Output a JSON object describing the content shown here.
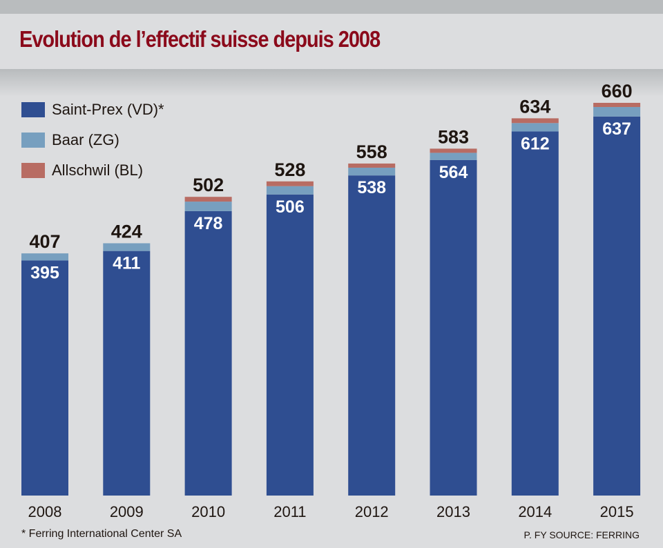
{
  "chart_data": {
    "type": "bar",
    "stacked": true,
    "title": "Evolution de l’effectif suisse depuis 2008",
    "xlabel": "",
    "ylabel": "",
    "ylim": [
      0,
      660
    ],
    "grid": false,
    "legend_position": "top-left",
    "categories": [
      "2008",
      "2009",
      "2010",
      "2011",
      "2012",
      "2013",
      "2014",
      "2015"
    ],
    "series": [
      {
        "name": "Saint-Prex (VD)*",
        "color": "#2f4e91",
        "values": [
          395,
          411,
          478,
          506,
          538,
          564,
          612,
          637
        ]
      },
      {
        "name": "Baar (ZG)",
        "color": "#779fbf",
        "values": [
          12,
          13,
          16,
          14,
          13,
          12,
          14,
          16
        ]
      },
      {
        "name": "Allschwil (BL)",
        "color": "#b86c63",
        "values": [
          0,
          0,
          8,
          8,
          7,
          7,
          8,
          7
        ]
      }
    ],
    "totals": [
      407,
      424,
      502,
      528,
      558,
      583,
      634,
      660
    ],
    "inner_labels": [
      395,
      411,
      478,
      506,
      538,
      564,
      612,
      637
    ],
    "footnote": "* Ferring International Center SA",
    "source": "P. FY SOURCE: FERRING"
  }
}
